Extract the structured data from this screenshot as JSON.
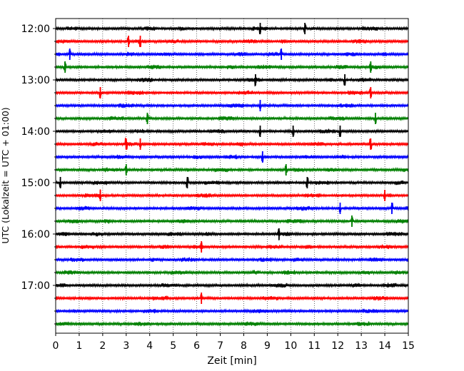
{
  "chart_data": {
    "type": "line",
    "title": "",
    "xlabel": "Zeit  [min]",
    "ylabel": "UTC (Lokalzeit = UTC + 01:00)",
    "xlim": [
      0,
      15
    ],
    "x_ticks": [
      "0",
      "1",
      "2",
      "3",
      "4",
      "5",
      "6",
      "7",
      "8",
      "9",
      "10",
      "11",
      "12",
      "13",
      "14",
      "15"
    ],
    "y_tick_labels": [
      "12:00",
      "13:00",
      "14:00",
      "15:00",
      "16:00",
      "17:00"
    ],
    "grid": "vertical dotted at each minute",
    "row_interval_minutes": 15,
    "start_time": "12:00",
    "colors": [
      "#000000",
      "#ff0000",
      "#0000ff",
      "#008000"
    ],
    "series": [
      {
        "row_start": "12:00",
        "color": "#000000",
        "spikes_min": [
          8.7,
          10.6
        ]
      },
      {
        "row_start": "12:15",
        "color": "#ff0000",
        "spikes_min": [
          3.1,
          3.6
        ]
      },
      {
        "row_start": "12:30",
        "color": "#0000ff",
        "spikes_min": [
          0.6,
          9.6
        ]
      },
      {
        "row_start": "12:45",
        "color": "#008000",
        "spikes_min": [
          0.4,
          13.4
        ]
      },
      {
        "row_start": "13:00",
        "color": "#000000",
        "spikes_min": [
          8.5,
          12.3
        ]
      },
      {
        "row_start": "13:15",
        "color": "#ff0000",
        "spikes_min": [
          1.9,
          13.4
        ]
      },
      {
        "row_start": "13:30",
        "color": "#0000ff",
        "spikes_min": [
          8.7
        ]
      },
      {
        "row_start": "13:45",
        "color": "#008000",
        "spikes_min": [
          3.9,
          13.6
        ]
      },
      {
        "row_start": "14:00",
        "color": "#000000",
        "spikes_min": [
          8.7,
          10.1,
          12.1
        ]
      },
      {
        "row_start": "14:15",
        "color": "#ff0000",
        "spikes_min": [
          3.0,
          3.6,
          13.4
        ]
      },
      {
        "row_start": "14:30",
        "color": "#0000ff",
        "spikes_min": [
          8.8
        ]
      },
      {
        "row_start": "14:45",
        "color": "#008000",
        "spikes_min": [
          3.0,
          9.8
        ]
      },
      {
        "row_start": "15:00",
        "color": "#000000",
        "spikes_min": [
          0.2,
          5.6,
          10.7
        ]
      },
      {
        "row_start": "15:15",
        "color": "#ff0000",
        "spikes_min": [
          1.9,
          14.0
        ]
      },
      {
        "row_start": "15:30",
        "color": "#0000ff",
        "spikes_min": [
          12.1,
          14.3
        ]
      },
      {
        "row_start": "15:45",
        "color": "#008000",
        "spikes_min": [
          12.6
        ]
      },
      {
        "row_start": "16:00",
        "color": "#000000",
        "spikes_min": [
          9.5
        ]
      },
      {
        "row_start": "16:15",
        "color": "#ff0000",
        "spikes_min": [
          6.2
        ]
      },
      {
        "row_start": "16:30",
        "color": "#0000ff",
        "spikes_min": []
      },
      {
        "row_start": "16:45",
        "color": "#008000",
        "spikes_min": []
      },
      {
        "row_start": "17:00",
        "color": "#000000",
        "spikes_min": []
      },
      {
        "row_start": "17:15",
        "color": "#ff0000",
        "spikes_min": [
          6.2
        ]
      },
      {
        "row_start": "17:30",
        "color": "#0000ff",
        "spikes_min": []
      },
      {
        "row_start": "17:45",
        "color": "#008000",
        "spikes_min": []
      }
    ]
  }
}
